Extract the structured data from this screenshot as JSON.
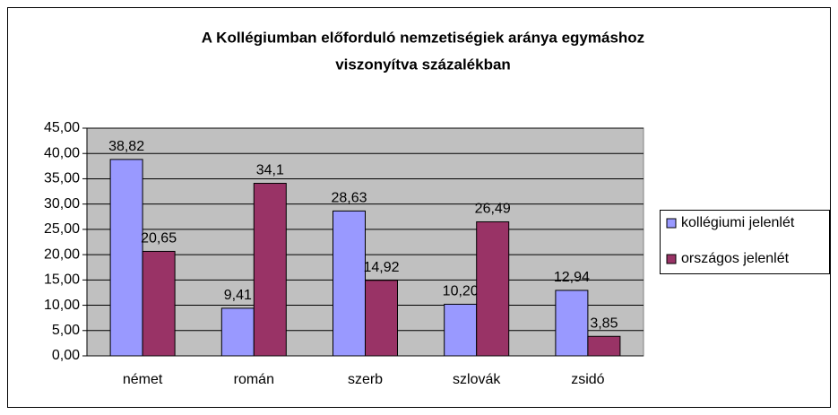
{
  "chart_data": {
    "type": "bar",
    "title": [
      "A Kollégiumban előforduló nemzetiségiek aránya egymáshoz",
      "viszonyítva százalékban"
    ],
    "categories": [
      "német",
      "román",
      "szerb",
      "szlovák",
      "zsidó"
    ],
    "series": [
      {
        "name": "kollégiumi jelenlét",
        "color": "#9999ff",
        "values": [
          38.82,
          9.41,
          28.63,
          10.2,
          12.94
        ],
        "value_labels": [
          "38,82",
          "9,41",
          "28,63",
          "10,20",
          "12,94"
        ]
      },
      {
        "name": "országos jelenlét",
        "color": "#993366",
        "values": [
          20.65,
          34.1,
          14.92,
          26.49,
          3.85
        ],
        "value_labels": [
          "20,65",
          "34,1",
          "14,92",
          "26,49",
          "3,85"
        ]
      }
    ],
    "ylim": [
      0,
      45
    ],
    "yticks": [
      {
        "value": 0,
        "label": "0,00"
      },
      {
        "value": 5,
        "label": "5,00"
      },
      {
        "value": 10,
        "label": "10,00"
      },
      {
        "value": 15,
        "label": "15,00"
      },
      {
        "value": 20,
        "label": "20,00"
      },
      {
        "value": 25,
        "label": "25,00"
      },
      {
        "value": 30,
        "label": "30,00"
      },
      {
        "value": 35,
        "label": "35,00"
      },
      {
        "value": 40,
        "label": "40,00"
      },
      {
        "value": 45,
        "label": "45,00"
      }
    ],
    "grid": true,
    "legend": "right",
    "plot_background": "#c0c0c0"
  }
}
